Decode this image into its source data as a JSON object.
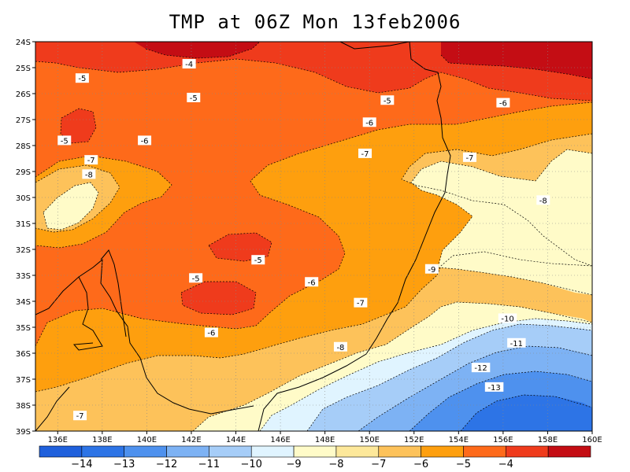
{
  "title": "TMP at 06Z Mon 13feb2006",
  "lon_labels": [
    "136E",
    "138E",
    "140E",
    "142E",
    "144E",
    "146E",
    "148E",
    "150E",
    "152E",
    "154E",
    "156E",
    "158E",
    "160E"
  ],
  "lat_labels": [
    "24S",
    "25S",
    "26S",
    "27S",
    "28S",
    "29S",
    "30S",
    "31S",
    "32S",
    "33S",
    "34S",
    "35S",
    "36S",
    "37S",
    "38S",
    "39S"
  ],
  "contour_labels": [
    {
      "text": "-4",
      "lon": 141.9,
      "lat": 24.85
    },
    {
      "text": "-5",
      "lon": 137.1,
      "lat": 25.4
    },
    {
      "text": "-5",
      "lon": 142.1,
      "lat": 26.15
    },
    {
      "text": "-5",
      "lon": 150.8,
      "lat": 26.25
    },
    {
      "text": "-6",
      "lon": 156.0,
      "lat": 26.35
    },
    {
      "text": "-6",
      "lon": 150.0,
      "lat": 27.1
    },
    {
      "text": "-5",
      "lon": 136.3,
      "lat": 27.8
    },
    {
      "text": "-6",
      "lon": 139.9,
      "lat": 27.8
    },
    {
      "text": "-7",
      "lon": 137.5,
      "lat": 28.55
    },
    {
      "text": "-7",
      "lon": 149.8,
      "lat": 28.3
    },
    {
      "text": "-7",
      "lon": 154.5,
      "lat": 28.45
    },
    {
      "text": "-8",
      "lon": 137.4,
      "lat": 29.1
    },
    {
      "text": "-8",
      "lon": 157.8,
      "lat": 30.1
    },
    {
      "text": "-5",
      "lon": 145.0,
      "lat": 32.4
    },
    {
      "text": "-5",
      "lon": 142.2,
      "lat": 33.1
    },
    {
      "text": "-6",
      "lon": 147.4,
      "lat": 33.25
    },
    {
      "text": "-9",
      "lon": 152.8,
      "lat": 32.75
    },
    {
      "text": "-7",
      "lon": 149.6,
      "lat": 34.05
    },
    {
      "text": "-6",
      "lon": 142.9,
      "lat": 35.2
    },
    {
      "text": "-10",
      "lon": 156.2,
      "lat": 34.65
    },
    {
      "text": "-8",
      "lon": 148.7,
      "lat": 35.75
    },
    {
      "text": "-11",
      "lon": 156.6,
      "lat": 35.6
    },
    {
      "text": "-12",
      "lon": 155.0,
      "lat": 36.55
    },
    {
      "text": "-13",
      "lon": 155.6,
      "lat": 37.3
    },
    {
      "text": "-7",
      "lon": 137.0,
      "lat": 38.4
    }
  ],
  "colorbar": {
    "colors": [
      "#1f60dc",
      "#2d74e6",
      "#4e91ee",
      "#7db2f4",
      "#a6cdf8",
      "#e0f4ff",
      "#fffbc8",
      "#fde89a",
      "#fdc25a",
      "#fe9f0e",
      "#fe6a1a",
      "#ef3b1c",
      "#c40d14"
    ],
    "labels": [
      "-14",
      "-13",
      "-12",
      "-11",
      "-10",
      "-9",
      "-8",
      "-7",
      "-6",
      "-5",
      "-4"
    ]
  }
}
